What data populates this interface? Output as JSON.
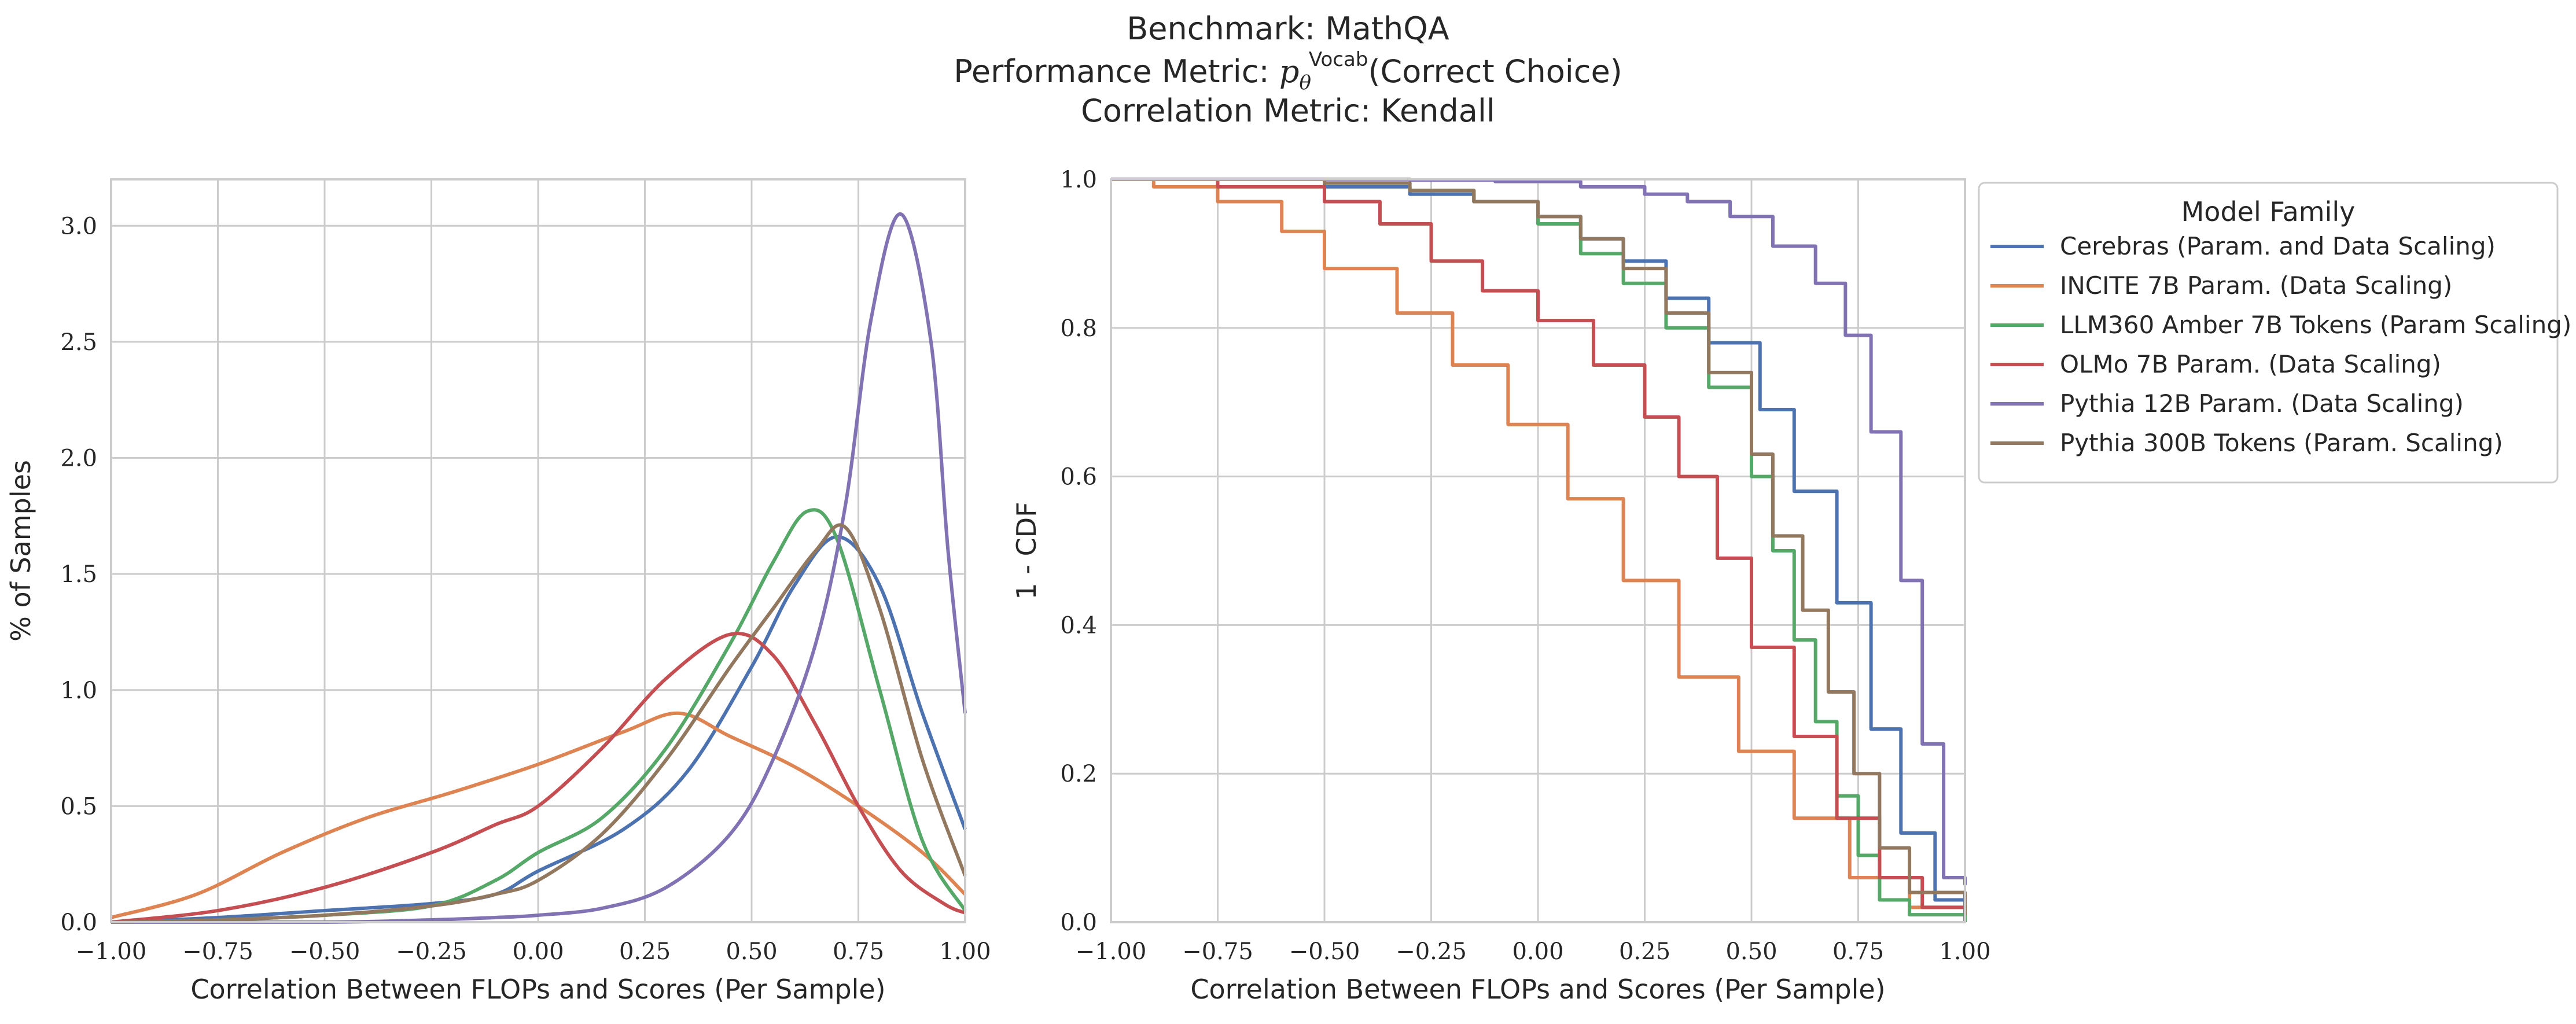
{
  "title": {
    "line1": "Benchmark: MathQA",
    "line2_prefix": "Performance Metric: ",
    "line2_math_base": "p",
    "line2_math_sub": "θ",
    "line2_math_sup": "Vocab",
    "line2_suffix": "(Correct Choice)",
    "line3": "Correlation Metric: Kendall"
  },
  "legend": {
    "title": "Model Family",
    "placement": "outside-right of right panel, top"
  },
  "colors": {
    "Cerebras (Param. and Data Scaling)": "#4c72b0",
    "INCITE 7B Param. (Data Scaling)": "#dd8452",
    "LLM360 Amber 7B Tokens (Param Scaling)": "#55a868",
    "OLMo 7B Param. (Data Scaling)": "#c44e52",
    "Pythia 12B Param. (Data Scaling)": "#8172b3",
    "Pythia 300B Tokens (Param. Scaling)": "#937860",
    "grid": "#cccccc",
    "spine": "#cccccc"
  },
  "chart_data": [
    {
      "type": "line",
      "panel": "left",
      "xlabel": "Correlation Between FLOPs and Scores (Per Sample)",
      "ylabel": "% of Samples",
      "xlim": [
        -1.0,
        1.0
      ],
      "ylim": [
        0,
        3.2
      ],
      "xticks": [
        "−1.00",
        "−0.75",
        "−0.50",
        "−0.25",
        "0.00",
        "0.25",
        "0.50",
        "0.75",
        "1.00"
      ],
      "xtick_values": [
        -1.0,
        -0.75,
        -0.5,
        -0.25,
        0.0,
        0.25,
        0.5,
        0.75,
        1.0
      ],
      "yticks": [
        "0.0",
        "0.5",
        "1.0",
        "1.5",
        "2.0",
        "2.5",
        "3.0"
      ],
      "ytick_values": [
        0.0,
        0.5,
        1.0,
        1.5,
        2.0,
        2.5,
        3.0
      ],
      "grid": true,
      "series": [
        {
          "name": "Cerebras (Param. and Data Scaling)",
          "x": [
            -1.0,
            -0.75,
            -0.5,
            -0.25,
            -0.1,
            0.0,
            0.2,
            0.35,
            0.5,
            0.6,
            0.7,
            0.8,
            0.9,
            1.0
          ],
          "y": [
            0.0,
            0.02,
            0.05,
            0.08,
            0.12,
            0.22,
            0.4,
            0.65,
            1.1,
            1.45,
            1.66,
            1.45,
            0.9,
            0.4
          ]
        },
        {
          "name": "INCITE 7B Param. (Data Scaling)",
          "x": [
            -1.0,
            -0.8,
            -0.6,
            -0.4,
            -0.2,
            0.0,
            0.2,
            0.33,
            0.45,
            0.6,
            0.75,
            0.9,
            1.0
          ],
          "y": [
            0.02,
            0.12,
            0.3,
            0.45,
            0.56,
            0.68,
            0.82,
            0.9,
            0.8,
            0.67,
            0.5,
            0.3,
            0.12
          ]
        },
        {
          "name": "LLM360 Amber 7B Tokens (Param Scaling)",
          "x": [
            -1.0,
            -0.75,
            -0.5,
            -0.25,
            -0.1,
            0.0,
            0.15,
            0.3,
            0.45,
            0.55,
            0.63,
            0.7,
            0.8,
            0.9,
            1.0
          ],
          "y": [
            0.0,
            0.01,
            0.03,
            0.07,
            0.18,
            0.3,
            0.45,
            0.75,
            1.2,
            1.55,
            1.77,
            1.65,
            1.0,
            0.35,
            0.05
          ]
        },
        {
          "name": "OLMo 7B Param. (Data Scaling)",
          "x": [
            -1.0,
            -0.75,
            -0.5,
            -0.25,
            -0.1,
            0.0,
            0.15,
            0.3,
            0.45,
            0.55,
            0.65,
            0.75,
            0.85,
            0.95,
            1.0
          ],
          "y": [
            0.0,
            0.05,
            0.15,
            0.3,
            0.42,
            0.5,
            0.75,
            1.05,
            1.24,
            1.15,
            0.85,
            0.5,
            0.22,
            0.08,
            0.04
          ]
        },
        {
          "name": "Pythia 12B Param. (Data Scaling)",
          "x": [
            -1.0,
            -0.5,
            -0.25,
            -0.1,
            0.0,
            0.15,
            0.3,
            0.45,
            0.55,
            0.65,
            0.72,
            0.78,
            0.85,
            0.92,
            0.96,
            1.0
          ],
          "y": [
            0.0,
            0.0,
            0.01,
            0.02,
            0.03,
            0.06,
            0.15,
            0.38,
            0.7,
            1.2,
            1.8,
            2.6,
            3.05,
            2.5,
            1.6,
            0.9
          ]
        },
        {
          "name": "Pythia 300B Tokens (Param. Scaling)",
          "x": [
            -1.0,
            -0.75,
            -0.5,
            -0.25,
            -0.1,
            0.0,
            0.15,
            0.3,
            0.45,
            0.55,
            0.65,
            0.72,
            0.8,
            0.9,
            1.0
          ],
          "y": [
            0.0,
            0.01,
            0.03,
            0.07,
            0.12,
            0.18,
            0.38,
            0.7,
            1.1,
            1.35,
            1.6,
            1.7,
            1.35,
            0.7,
            0.2
          ]
        }
      ]
    },
    {
      "type": "line",
      "subtype": "step",
      "panel": "right",
      "xlabel": "Correlation Between FLOPs and Scores (Per Sample)",
      "ylabel": "1 - CDF",
      "xlim": [
        -1.0,
        1.0
      ],
      "ylim": [
        0,
        1.0
      ],
      "xticks": [
        "−1.00",
        "−0.75",
        "−0.50",
        "−0.25",
        "0.00",
        "0.25",
        "0.50",
        "0.75",
        "1.00"
      ],
      "xtick_values": [
        -1.0,
        -0.75,
        -0.5,
        -0.25,
        0.0,
        0.25,
        0.5,
        0.75,
        1.0
      ],
      "yticks": [
        "0.0",
        "0.2",
        "0.4",
        "0.6",
        "0.8",
        "1.0"
      ],
      "ytick_values": [
        0.0,
        0.2,
        0.4,
        0.6,
        0.8,
        1.0
      ],
      "grid": true,
      "series": [
        {
          "name": "Cerebras (Param. and Data Scaling)",
          "x": [
            -1.0,
            -0.5,
            -0.3,
            -0.15,
            0.0,
            0.1,
            0.2,
            0.3,
            0.4,
            0.52,
            0.6,
            0.7,
            0.78,
            0.85,
            0.93,
            1.0
          ],
          "y": [
            1.0,
            0.99,
            0.98,
            0.97,
            0.95,
            0.92,
            0.89,
            0.84,
            0.78,
            0.69,
            0.58,
            0.43,
            0.26,
            0.12,
            0.03,
            0.01
          ]
        },
        {
          "name": "INCITE 7B Param. (Data Scaling)",
          "x": [
            -1.0,
            -0.9,
            -0.75,
            -0.6,
            -0.5,
            -0.33,
            -0.2,
            -0.07,
            0.07,
            0.2,
            0.33,
            0.47,
            0.6,
            0.73,
            0.87,
            1.0
          ],
          "y": [
            1.0,
            0.99,
            0.97,
            0.93,
            0.88,
            0.82,
            0.75,
            0.67,
            0.57,
            0.46,
            0.33,
            0.23,
            0.14,
            0.06,
            0.02,
            0.01
          ]
        },
        {
          "name": "LLM360 Amber 7B Tokens (Param Scaling)",
          "x": [
            -1.0,
            -0.5,
            -0.3,
            -0.15,
            0.0,
            0.1,
            0.2,
            0.3,
            0.4,
            0.5,
            0.55,
            0.6,
            0.65,
            0.7,
            0.75,
            0.8,
            0.87,
            1.0
          ],
          "y": [
            1.0,
            0.995,
            0.985,
            0.97,
            0.94,
            0.9,
            0.86,
            0.8,
            0.72,
            0.6,
            0.5,
            0.38,
            0.27,
            0.17,
            0.09,
            0.03,
            0.01,
            0.0
          ]
        },
        {
          "name": "OLMo 7B Param. (Data Scaling)",
          "x": [
            -1.0,
            -0.75,
            -0.5,
            -0.37,
            -0.25,
            -0.13,
            0.0,
            0.13,
            0.25,
            0.33,
            0.42,
            0.5,
            0.6,
            0.7,
            0.8,
            0.9,
            1.0
          ],
          "y": [
            1.0,
            0.99,
            0.97,
            0.94,
            0.89,
            0.85,
            0.81,
            0.75,
            0.68,
            0.6,
            0.49,
            0.37,
            0.25,
            0.14,
            0.06,
            0.02,
            0.01
          ]
        },
        {
          "name": "Pythia 12B Param. (Data Scaling)",
          "x": [
            -1.0,
            -0.3,
            -0.1,
            0.1,
            0.25,
            0.35,
            0.45,
            0.55,
            0.65,
            0.72,
            0.78,
            0.85,
            0.9,
            0.95,
            1.0
          ],
          "y": [
            1.0,
            0.999,
            0.997,
            0.99,
            0.98,
            0.97,
            0.95,
            0.91,
            0.86,
            0.79,
            0.66,
            0.46,
            0.24,
            0.06,
            0.05
          ]
        },
        {
          "name": "Pythia 300B Tokens (Param. Scaling)",
          "x": [
            -1.0,
            -0.5,
            -0.3,
            -0.15,
            0.0,
            0.1,
            0.2,
            0.3,
            0.4,
            0.5,
            0.55,
            0.62,
            0.68,
            0.74,
            0.8,
            0.87,
            1.0
          ],
          "y": [
            1.0,
            0.995,
            0.985,
            0.97,
            0.95,
            0.92,
            0.88,
            0.82,
            0.74,
            0.63,
            0.52,
            0.42,
            0.31,
            0.2,
            0.1,
            0.04,
            0.01
          ]
        }
      ]
    }
  ]
}
